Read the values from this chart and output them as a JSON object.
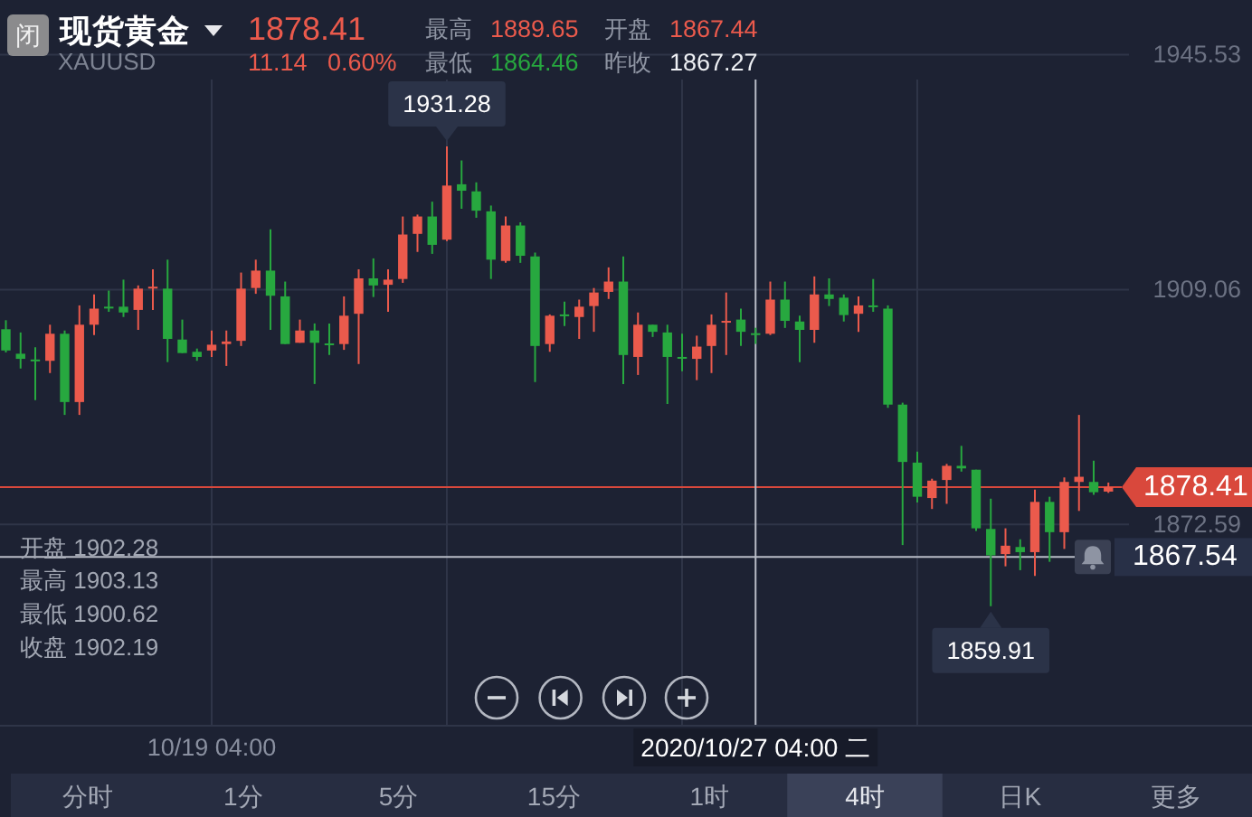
{
  "chart_data": {
    "type": "candlestick",
    "title": "现货黄金",
    "subtitle": "XAUUSD",
    "categories": [
      null,
      null,
      null,
      null,
      null,
      null,
      null,
      null,
      null,
      null,
      null,
      null,
      null,
      null,
      "10/19 04:00",
      null,
      null,
      null,
      null,
      null,
      null,
      null,
      null,
      null,
      null,
      null,
      null,
      null,
      null,
      null,
      null,
      null,
      null,
      null,
      null,
      null,
      null,
      null,
      null,
      null,
      null,
      null,
      null,
      null,
      null,
      null,
      null,
      null,
      null,
      null,
      null,
      "2020/10/27 04:00 二",
      null,
      null,
      null,
      null,
      null,
      null,
      null,
      null,
      null,
      null,
      null,
      null,
      null,
      null,
      null,
      null,
      null,
      null,
      null,
      null,
      null,
      null,
      null,
      null
    ],
    "ohlc": [
      [
        1902.9,
        1904.3,
        1899.3,
        1899.6
      ],
      [
        1899.1,
        1902.4,
        1896.8,
        1898.3
      ],
      [
        1898.2,
        1900.1,
        1891.9,
        1898.0
      ],
      [
        1898.0,
        1903.6,
        1896.1,
        1902.2
      ],
      [
        1902.2,
        1902.7,
        1889.6,
        1891.6
      ],
      [
        1891.6,
        1906.6,
        1889.6,
        1903.6
      ],
      [
        1903.6,
        1908.3,
        1902.0,
        1906.1
      ],
      [
        1906.4,
        1908.9,
        1905.6,
        1906.2
      ],
      [
        1906.4,
        1910.6,
        1904.8,
        1905.5
      ],
      [
        1905.9,
        1909.7,
        1902.8,
        1909.2
      ],
      [
        1909.4,
        1912.2,
        1905.9,
        1909.5
      ],
      [
        1909.2,
        1913.7,
        1897.8,
        1901.4
      ],
      [
        1901.3,
        1904.4,
        1899.2,
        1899.2
      ],
      [
        1899.4,
        1899.9,
        1898.0,
        1898.6
      ],
      [
        1899.6,
        1902.7,
        1898.6,
        1900.5
      ],
      [
        1900.6,
        1902.7,
        1897.2,
        1901.0
      ],
      [
        1901.1,
        1911.7,
        1900.3,
        1909.2
      ],
      [
        1909.3,
        1913.7,
        1908.4,
        1912.0
      ],
      [
        1912.0,
        1918.4,
        1902.8,
        1908.1
      ],
      [
        1908.0,
        1910.3,
        1900.6,
        1900.6
      ],
      [
        1900.8,
        1904.4,
        1900.8,
        1902.7
      ],
      [
        1902.7,
        1903.8,
        1894.4,
        1900.8
      ],
      [
        1900.7,
        1903.8,
        1898.9,
        1900.6
      ],
      [
        1900.6,
        1908.0,
        1899.7,
        1905.0
      ],
      [
        1905.3,
        1912.2,
        1897.5,
        1910.8
      ],
      [
        1910.8,
        1913.9,
        1907.9,
        1909.7
      ],
      [
        1909.8,
        1912.2,
        1905.6,
        1910.6
      ],
      [
        1910.7,
        1920.4,
        1910.1,
        1917.6
      ],
      [
        1917.7,
        1920.7,
        1914.9,
        1920.4
      ],
      [
        1920.4,
        1922.7,
        1914.6,
        1916.0
      ],
      [
        1916.8,
        1931.28,
        1916.6,
        1925.2
      ],
      [
        1925.4,
        1929.1,
        1921.6,
        1924.4
      ],
      [
        1924.3,
        1925.7,
        1920.2,
        1921.3
      ],
      [
        1921.2,
        1922.1,
        1910.7,
        1913.7
      ],
      [
        1913.5,
        1920.4,
        1913.2,
        1919.0
      ],
      [
        1919.0,
        1919.5,
        1913.2,
        1914.3
      ],
      [
        1914.2,
        1914.8,
        1894.7,
        1900.3
      ],
      [
        1900.6,
        1905.2,
        1899.4,
        1905.0
      ],
      [
        1905.2,
        1907.2,
        1903.4,
        1905.1
      ],
      [
        1904.8,
        1907.5,
        1901.4,
        1906.4
      ],
      [
        1906.5,
        1909.3,
        1902.5,
        1908.6
      ],
      [
        1908.7,
        1912.5,
        1907.6,
        1910.3
      ],
      [
        1910.3,
        1914.2,
        1894.4,
        1898.9
      ],
      [
        1898.6,
        1905.5,
        1895.8,
        1903.6
      ],
      [
        1903.6,
        1903.6,
        1901.7,
        1902.5
      ],
      [
        1902.4,
        1903.6,
        1891.3,
        1898.6
      ],
      [
        1898.6,
        1902.2,
        1896.4,
        1898.4
      ],
      [
        1898.3,
        1901.9,
        1895.0,
        1900.2
      ],
      [
        1900.3,
        1905.2,
        1896.1,
        1903.6
      ],
      [
        1904.0,
        1908.6,
        1898.9,
        1904.2
      ],
      [
        1904.4,
        1906.1,
        1900.3,
        1902.5
      ],
      [
        1902.28,
        1903.13,
        1900.62,
        1902.19
      ],
      [
        1902.2,
        1910.3,
        1902.0,
        1907.5
      ],
      [
        1907.5,
        1910.3,
        1903.1,
        1904.2
      ],
      [
        1904.1,
        1905.0,
        1897.8,
        1902.8
      ],
      [
        1902.8,
        1911.1,
        1900.8,
        1908.3
      ],
      [
        1908.3,
        1910.8,
        1906.5,
        1907.6
      ],
      [
        1907.8,
        1908.3,
        1904.1,
        1905.1
      ],
      [
        1905.3,
        1908.0,
        1902.5,
        1906.6
      ],
      [
        1906.6,
        1910.7,
        1905.6,
        1906.4
      ],
      [
        1906.1,
        1906.6,
        1890.7,
        1891.2
      ],
      [
        1891.2,
        1891.5,
        1869.4,
        1882.3
      ],
      [
        1882.2,
        1883.9,
        1876.0,
        1876.9
      ],
      [
        1876.7,
        1879.7,
        1875.0,
        1879.4
      ],
      [
        1879.5,
        1882.0,
        1875.8,
        1881.7
      ],
      [
        1881.7,
        1884.8,
        1880.8,
        1881.3
      ],
      [
        1881.1,
        1881.1,
        1871.6,
        1872.0
      ],
      [
        1871.9,
        1876.6,
        1859.91,
        1867.8
      ],
      [
        1868.0,
        1872.0,
        1866.1,
        1869.3
      ],
      [
        1869.1,
        1870.3,
        1865.5,
        1868.3
      ],
      [
        1868.3,
        1878.0,
        1864.6,
        1876.1
      ],
      [
        1876.1,
        1876.9,
        1866.8,
        1871.4
      ],
      [
        1871.4,
        1879.9,
        1868.8,
        1879.2
      ],
      [
        1879.2,
        1889.6,
        1874.7,
        1880.0
      ],
      [
        1879.2,
        1882.5,
        1877.2,
        1877.6
      ],
      [
        1877.7,
        1879.1,
        1877.5,
        1878.4
      ]
    ],
    "ylim": [
      1841.5,
      1945.53
    ],
    "yticks": [
      1872.59,
      1909.06,
      1945.53
    ],
    "grid": true,
    "ref_lines": [
      {
        "axis": "y",
        "value": 1878.41,
        "label": "1878.41",
        "color": "#d9483c"
      },
      {
        "axis": "y",
        "value": 1867.54,
        "label": "1867.54",
        "color": "#b9bdc7"
      },
      {
        "axis": "x",
        "value": "2020/10/27 04:00 二",
        "color": "#b9bdc7"
      }
    ],
    "annotations": [
      "闭",
      "1878.41",
      "11.14",
      "0.60%",
      "最高 1889.65",
      "开盘 1867.44",
      "最低 1864.46",
      "昨收 1867.27",
      {
        "text": "1931.28",
        "y": 1931.28
      },
      {
        "text": "1859.91",
        "y": 1859.91
      },
      "开盘 1902.28",
      "最高 1903.13",
      "最低 1900.62",
      "收盘 1902.19",
      "分时",
      "1分",
      "5分",
      "15分",
      "1时",
      "4时",
      "日K",
      "更多"
    ]
  }
}
